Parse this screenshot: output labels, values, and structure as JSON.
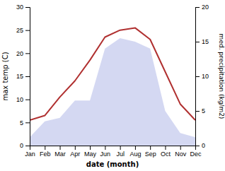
{
  "chart_data": {
    "type": "line",
    "xlabel": "date (month)",
    "ylabel": "max temp (C)",
    "y2label": "med. precipitation (kg/m2)",
    "categories": [
      "Jan",
      "Feb",
      "Mar",
      "Apr",
      "May",
      "Jun",
      "Jul",
      "Aug",
      "Sep",
      "Oct",
      "Nov",
      "Dec"
    ],
    "series": [
      {
        "type": "area",
        "axis": "y2",
        "color": "#b0b8e8",
        "values": [
          1.2,
          3.5,
          4.0,
          6.5,
          6.5,
          14.0,
          15.5,
          15.0,
          14.0,
          5.0,
          1.8,
          1.2
        ]
      },
      {
        "type": "line",
        "axis": "y",
        "color": "#b03030",
        "values": [
          5.5,
          6.5,
          10.5,
          14.0,
          18.5,
          23.5,
          25.0,
          25.5,
          23.0,
          16.0,
          9.0,
          5.5
        ]
      }
    ],
    "ylim": [
      0,
      30
    ],
    "yticks": [
      0,
      5,
      10,
      15,
      20,
      25,
      30
    ],
    "y2lim": [
      0,
      20
    ],
    "y2ticks": [
      0,
      5,
      10,
      15,
      20
    ],
    "grid": false
  }
}
